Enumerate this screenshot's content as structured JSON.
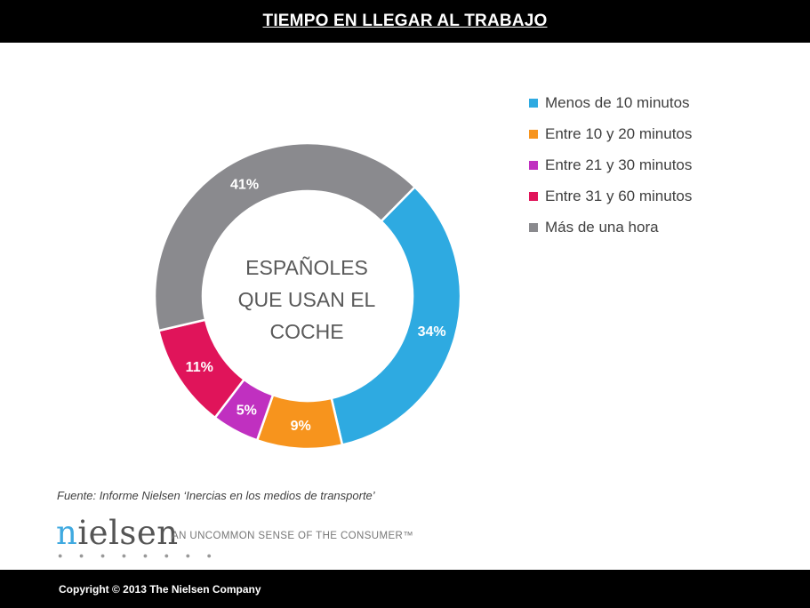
{
  "header": {
    "title": "TIEMPO EN LLEGAR AL TRABAJO"
  },
  "center_label": [
    "ESPAÑOLES",
    "QUE USAN EL",
    "COCHE"
  ],
  "source": "Fuente: Informe Nielsen ‘Inercias en los medios de transporte’",
  "brand": {
    "wordmark": "nielsen",
    "tagline": "AN UNCOMMON SENSE OF THE CONSUMER™"
  },
  "footer": {
    "copyright": "Copyright © 2013 The Nielsen Company"
  },
  "chart_data": {
    "type": "pie",
    "subtype": "donut",
    "title": "TIEMPO EN LLEGAR AL TRABAJO",
    "legend_position": "right",
    "categories": [
      "Menos de 10 minutos",
      "Entre 10 y 20 minutos",
      "Entre 21 y 30 minutos",
      "Entre 31 y 60 minutos",
      "Más de una hora"
    ],
    "values": [
      34,
      9,
      5,
      11,
      41
    ],
    "labels": [
      "34%",
      "9%",
      "5%",
      "11%",
      "41%"
    ],
    "colors": [
      "#2eaae1",
      "#f7941d",
      "#c030c0",
      "#e0145a",
      "#8a8a8e"
    ]
  }
}
